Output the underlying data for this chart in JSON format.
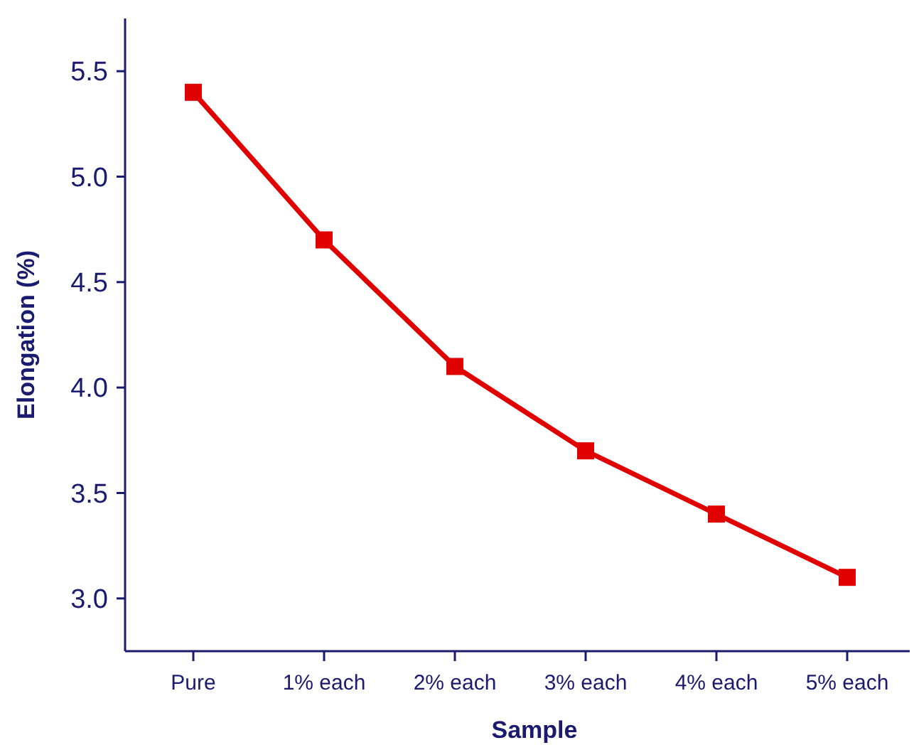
{
  "chart_data": {
    "type": "line",
    "xlabel": "Sample",
    "ylabel": "Elongation (%)",
    "categories": [
      "Pure",
      "1% each",
      "2% each",
      "3% each",
      "4% each",
      "5% each"
    ],
    "series": [
      {
        "color": "#e00000",
        "values": [
          5.4,
          4.7,
          4.1,
          3.7,
          3.4,
          3.1
        ]
      }
    ],
    "ylim": [
      2.75,
      5.75
    ],
    "yticks": [
      {
        "value": 3,
        "label": "3.0"
      },
      {
        "value": 3.5,
        "label": "3.5"
      },
      {
        "value": 4,
        "label": "4.0"
      },
      {
        "value": 4.5,
        "label": "4.5"
      },
      {
        "value": 5,
        "label": "5.0"
      },
      {
        "value": 5.5,
        "label": "5.5"
      }
    ],
    "grid": false,
    "marker": "square",
    "line_style": "solid"
  }
}
